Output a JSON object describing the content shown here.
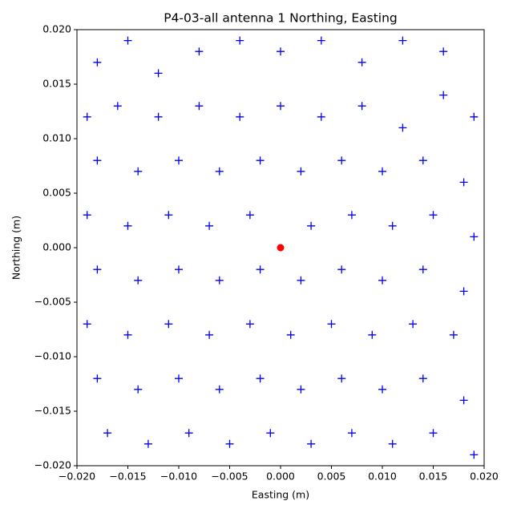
{
  "chart_data": {
    "type": "scatter",
    "title": "P4-03-all antenna 1 Northing, Easting",
    "x_label": "Easting (m)",
    "y_label": "Northing (m)",
    "xlim": [
      -0.02,
      0.02
    ],
    "ylim": [
      -0.02,
      0.02
    ],
    "xticks": [
      {
        "value": -0.02,
        "label": "−0.020"
      },
      {
        "value": -0.015,
        "label": "−0.015"
      },
      {
        "value": -0.01,
        "label": "−0.010"
      },
      {
        "value": -0.005,
        "label": "−0.005"
      },
      {
        "value": 0,
        "label": "0.000"
      },
      {
        "value": 0.005,
        "label": "0.005"
      },
      {
        "value": 0.01,
        "label": "0.010"
      },
      {
        "value": 0.015,
        "label": "0.015"
      },
      {
        "value": 0.02,
        "label": "0.020"
      }
    ],
    "yticks": [
      {
        "value": -0.02,
        "label": "−0.020"
      },
      {
        "value": -0.015,
        "label": "−0.015"
      },
      {
        "value": -0.01,
        "label": "−0.010"
      },
      {
        "value": -0.005,
        "label": "−0.005"
      },
      {
        "value": 0,
        "label": "0.000"
      },
      {
        "value": 0.005,
        "label": "0.005"
      },
      {
        "value": 0.01,
        "label": "0.010"
      },
      {
        "value": 0.015,
        "label": "0.015"
      },
      {
        "value": 0.02,
        "label": "0.020"
      }
    ],
    "series": [
      {
        "color": "#0000ff",
        "marker": "plus",
        "x": [
          -0.018,
          -0.015,
          -0.012,
          -0.008,
          -0.004,
          0,
          0.004,
          0.008,
          0.012,
          0.016,
          0.019,
          -0.019,
          -0.016,
          -0.012,
          -0.008,
          -0.004,
          0,
          0.004,
          0.008,
          0.012,
          0.016,
          -0.018,
          -0.014,
          -0.01,
          -0.006,
          -0.002,
          0.002,
          0.006,
          0.01,
          0.014,
          0.018,
          -0.019,
          -0.015,
          -0.011,
          -0.007,
          -0.003,
          0.003,
          0.007,
          0.011,
          0.015,
          0.019,
          -0.018,
          -0.014,
          -0.01,
          -0.006,
          -0.002,
          0.002,
          0.006,
          0.01,
          0.014,
          0.018,
          -0.019,
          -0.015,
          -0.011,
          -0.007,
          -0.003,
          0.001,
          0.005,
          0.009,
          0.013,
          0.017,
          -0.018,
          -0.014,
          -0.01,
          -0.006,
          -0.002,
          0.002,
          0.006,
          0.01,
          0.014,
          0.018,
          -0.017,
          -0.013,
          -0.009,
          -0.005,
          -0.001,
          0.003,
          0.007,
          0.011,
          0.015,
          0.019
        ],
        "y": [
          0.017,
          0.019,
          0.016,
          0.018,
          0.019,
          0.018,
          0.019,
          0.017,
          0.019,
          0.018,
          0.012,
          0.012,
          0.013,
          0.012,
          0.013,
          0.012,
          0.013,
          0.012,
          0.013,
          0.011,
          0.014,
          0.008,
          0.007,
          0.008,
          0.007,
          0.008,
          0.007,
          0.008,
          0.007,
          0.008,
          0.006,
          0.003,
          0.002,
          0.003,
          0.002,
          0.003,
          0.002,
          0.003,
          0.002,
          0.003,
          0.001,
          -0.002,
          -0.003,
          -0.002,
          -0.003,
          -0.002,
          -0.003,
          -0.002,
          -0.003,
          -0.002,
          -0.004,
          -0.007,
          -0.008,
          -0.007,
          -0.008,
          -0.007,
          -0.008,
          -0.007,
          -0.008,
          -0.007,
          -0.008,
          -0.012,
          -0.013,
          -0.012,
          -0.013,
          -0.012,
          -0.013,
          -0.012,
          -0.013,
          -0.012,
          -0.014,
          -0.017,
          -0.018,
          -0.017,
          -0.018,
          -0.017,
          -0.018,
          -0.017,
          -0.018,
          -0.017,
          -0.019
        ]
      },
      {
        "color": "#ff0000",
        "marker": "circle",
        "x": [
          0
        ],
        "y": [
          0
        ]
      }
    ]
  }
}
